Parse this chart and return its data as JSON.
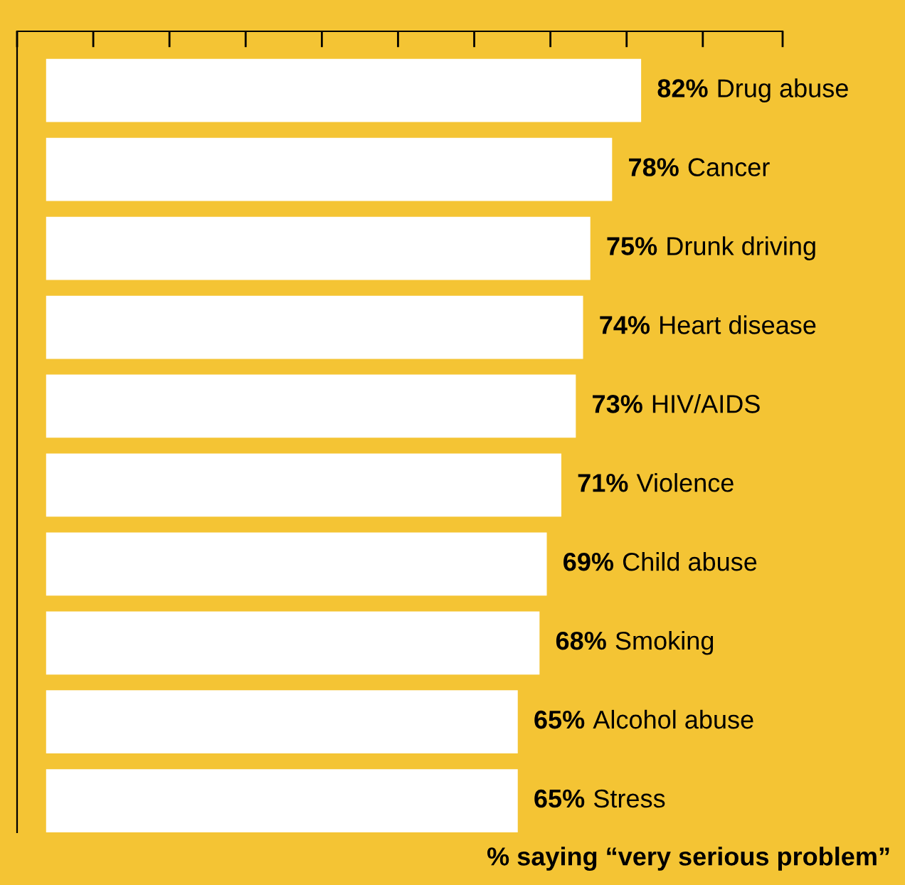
{
  "chart_data": {
    "type": "bar",
    "orientation": "horizontal",
    "categories": [
      "Drug abuse",
      "Cancer",
      "Drunk driving",
      "Heart disease",
      "HIV/AIDS",
      "Violence",
      "Child abuse",
      "Smoking",
      "Alcohol abuse",
      "Stress"
    ],
    "values": [
      82,
      78,
      75,
      74,
      73,
      71,
      69,
      68,
      65,
      65
    ],
    "value_labels": [
      "82%",
      "78%",
      "75%",
      "74%",
      "73%",
      "71%",
      "69%",
      "68%",
      "65%",
      "65%"
    ],
    "color": "#ffffff",
    "xlim": [
      -4,
      101.5
    ],
    "xticks": [
      {
        "value": -4,
        "label": null
      },
      {
        "value": 6.5,
        "label": null
      },
      {
        "value": 17,
        "label": null
      },
      {
        "value": 27.5,
        "label": null
      },
      {
        "value": 38,
        "label": null
      },
      {
        "value": 48.5,
        "label": null
      },
      {
        "value": 59,
        "label": null
      },
      {
        "value": 69.5,
        "label": null
      },
      {
        "value": 80,
        "label": null
      },
      {
        "value": 90.5,
        "label": null
      },
      {
        "value": 101.5,
        "label": null
      }
    ],
    "grid": false,
    "legend": false,
    "annotations": [
      "% saying “very serious problem”"
    ]
  }
}
